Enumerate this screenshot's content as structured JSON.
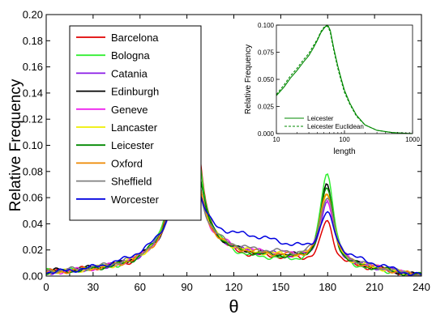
{
  "chart_data": [
    {
      "type": "line",
      "title": "",
      "xlabel": "θ",
      "ylabel": "Relative Frequency",
      "xlim": [
        0,
        240
      ],
      "ylim": [
        0,
        0.2
      ],
      "xticks": [
        "0",
        "30",
        "60",
        "90",
        "120",
        "150",
        "180",
        "210",
        "240"
      ],
      "yticks": [
        "0.00",
        "0.02",
        "0.04",
        "0.06",
        "0.08",
        "0.10",
        "0.12",
        "0.14",
        "0.16",
        "0.18",
        "0.20"
      ],
      "legend_position": "top-left",
      "grid": false,
      "series": [
        {
          "name": "Barcelona",
          "color": "#e00000",
          "peak1": 0.175,
          "peak2": 0.042,
          "w1": 5.5,
          "w2": 3.3,
          "valley": 0.012,
          "base": 0.004
        },
        {
          "name": "Bologna",
          "color": "#33ee33",
          "peak1": 0.155,
          "peak2": 0.079,
          "w1": 6.0,
          "w2": 3.6,
          "valley": 0.011,
          "base": 0.004
        },
        {
          "name": "Catania",
          "color": "#8a1ae6",
          "peak1": 0.103,
          "peak2": 0.056,
          "w1": 6.5,
          "w2": 3.6,
          "valley": 0.014,
          "base": 0.003
        },
        {
          "name": "Edinburgh",
          "color": "#000000",
          "peak1": 0.112,
          "peak2": 0.069,
          "w1": 6.3,
          "w2": 3.5,
          "valley": 0.014,
          "base": 0.004
        },
        {
          "name": "Geneve",
          "color": "#ee22ee",
          "peak1": 0.1,
          "peak2": 0.059,
          "w1": 6.5,
          "w2": 3.6,
          "valley": 0.015,
          "base": 0.003
        },
        {
          "name": "Lancaster",
          "color": "#eeee00",
          "peak1": 0.111,
          "peak2": 0.063,
          "w1": 6.4,
          "w2": 3.6,
          "valley": 0.014,
          "base": 0.003
        },
        {
          "name": "Leicester",
          "color": "#008800",
          "peak1": 0.129,
          "peak2": 0.067,
          "w1": 6.2,
          "w2": 3.5,
          "valley": 0.013,
          "base": 0.003
        },
        {
          "name": "Oxford",
          "color": "#ee8800",
          "peak1": 0.107,
          "peak2": 0.064,
          "w1": 6.4,
          "w2": 3.6,
          "valley": 0.014,
          "base": 0.003
        },
        {
          "name": "Sheffield",
          "color": "#808080",
          "peak1": 0.097,
          "peak2": 0.061,
          "w1": 6.6,
          "w2": 3.6,
          "valley": 0.016,
          "base": 0.004
        },
        {
          "name": "Worcester",
          "color": "#0000e0",
          "peak1": 0.087,
          "peak2": 0.048,
          "w1": 7.0,
          "w2": 3.8,
          "valley": 0.02,
          "base": 0.003
        }
      ]
    },
    {
      "type": "line",
      "title": "",
      "xlabel": "length",
      "ylabel": "Relative Frequency",
      "xscale": "log",
      "xlim": [
        10,
        1000
      ],
      "ylim": [
        0,
        0.1
      ],
      "xticks": [
        "10",
        "100",
        "1000"
      ],
      "yticks": [
        "0.000",
        "0.025",
        "0.050",
        "0.075",
        "0.100"
      ],
      "legend_position": "bottom-left",
      "series": [
        {
          "name": "Leicester",
          "color": "#008800",
          "style": "solid",
          "x": [
            10,
            13,
            16,
            20,
            25,
            30,
            35,
            40,
            45,
            50,
            55,
            58,
            62,
            66,
            70,
            80,
            90,
            100,
            120,
            150,
            200,
            300,
            500,
            1000
          ],
          "y": [
            0.035,
            0.043,
            0.051,
            0.058,
            0.066,
            0.072,
            0.079,
            0.086,
            0.093,
            0.097,
            0.1,
            0.099,
            0.095,
            0.086,
            0.078,
            0.062,
            0.05,
            0.04,
            0.028,
            0.017,
            0.008,
            0.003,
            0.001,
            0.0
          ]
        },
        {
          "name": "Leicester Euclidean",
          "color": "#008800",
          "style": "dashed",
          "x": [
            10,
            13,
            16,
            20,
            25,
            30,
            35,
            40,
            45,
            50,
            55,
            58,
            62,
            66,
            70,
            80,
            90,
            100,
            120,
            150,
            200,
            300,
            500,
            1000
          ],
          "y": [
            0.036,
            0.045,
            0.053,
            0.06,
            0.068,
            0.074,
            0.081,
            0.087,
            0.094,
            0.098,
            0.099,
            0.098,
            0.093,
            0.084,
            0.076,
            0.06,
            0.048,
            0.038,
            0.027,
            0.016,
            0.008,
            0.003,
            0.001,
            0.0
          ]
        }
      ]
    }
  ]
}
